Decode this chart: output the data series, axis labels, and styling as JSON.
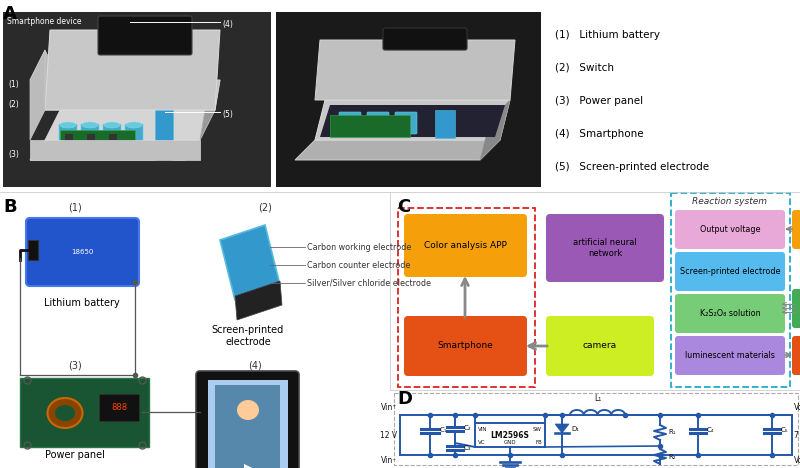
{
  "fig_width": 8.0,
  "fig_height": 4.68,
  "dpi": 100,
  "bg_color": "#ffffff",
  "legend_items": [
    "(1)   Lithium battery",
    "(2)   Switch",
    "(3)   Power panel",
    "(4)   Smartphone",
    "(5)   Screen-printed electrode"
  ],
  "electrode_labels": [
    "Carbon working electrode",
    "Carbon counter electrode",
    "Silver/Silver chloride electrode"
  ],
  "circuit_color": "#2457a8"
}
